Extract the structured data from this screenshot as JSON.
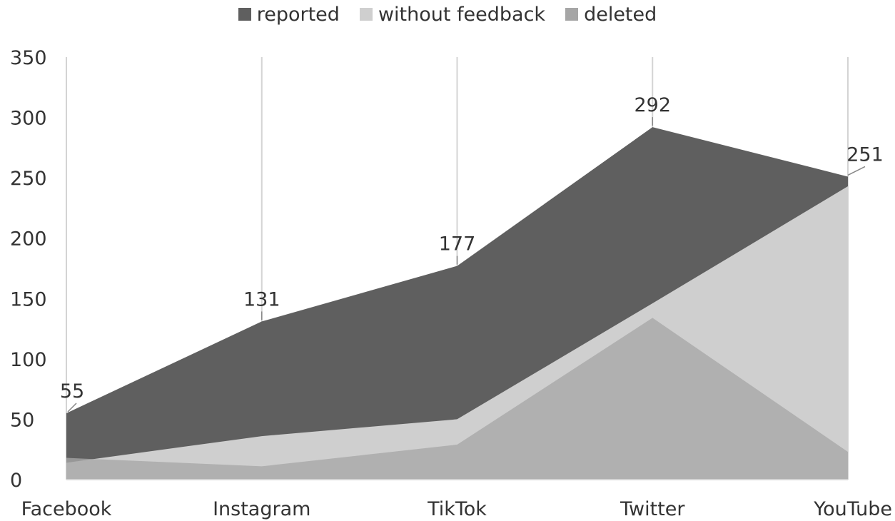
{
  "chart_data": {
    "type": "area",
    "categories": [
      "Facebook",
      "Instagram",
      "TikTok",
      "Twitter",
      "YouTube"
    ],
    "series": [
      {
        "name": "reported",
        "values": [
          55,
          131,
          177,
          292,
          251
        ],
        "color": "#5f5f5f"
      },
      {
        "name": "without feedback",
        "values": [
          14,
          36,
          50,
          146,
          243
        ],
        "color": "#cfcfcf"
      },
      {
        "name": "deleted",
        "values": [
          18,
          11,
          29,
          134,
          23
        ],
        "color": "#a6a6a6"
      }
    ],
    "data_labels": {
      "series": "reported",
      "values": [
        "55",
        "131",
        "177",
        "292",
        "251"
      ]
    },
    "ylim": [
      0,
      350
    ],
    "yticks": [
      0,
      50,
      100,
      150,
      200,
      250,
      300,
      350
    ],
    "ytick_labels": [
      "0",
      "50",
      "100",
      "150",
      "200",
      "250",
      "300",
      "350"
    ],
    "grid": "vertical",
    "legend_position": "top",
    "title": "",
    "xlabel": "",
    "ylabel": ""
  }
}
